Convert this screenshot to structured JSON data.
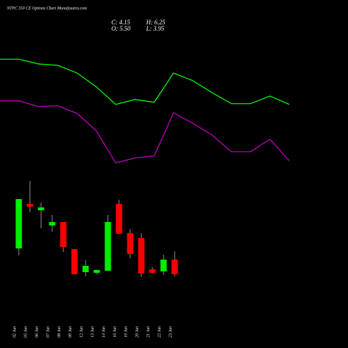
{
  "header": {
    "title": "NTPC 350 CE Options Chart Munafasutra.com",
    "summary": [
      "C: 4.15",
      "H: 6.25",
      "O: 5.50",
      "L: 3.95"
    ]
  },
  "chart_data": [
    {
      "type": "line",
      "ylim": [
        0,
        100
      ],
      "series": [
        {
          "color": "#00ff00",
          "values": [
            79.5,
            79.5,
            76.4,
            75.5,
            70.5,
            61.4,
            50,
            53.2,
            51.4,
            70.5,
            65.5,
            57.7,
            50.5,
            50.5,
            55.5,
            50
          ]
        },
        {
          "color": "#c000c0",
          "values": [
            52.3,
            52.3,
            48.6,
            49.1,
            44.1,
            32.7,
            11.8,
            15,
            16.4,
            44.5,
            37.7,
            30,
            19.1,
            19.1,
            27.3,
            13.2
          ]
        }
      ]
    },
    {
      "type": "candlestick",
      "ylim": [
        3.5,
        13
      ],
      "up_color": "#00ee00",
      "down_color": "#ff0000",
      "categories": [
        "02 Jun",
        "05 Jun",
        "06 Jun",
        "07 Jun",
        "08 Jun",
        "09 Jun",
        "12 Jun",
        "13 Jun",
        "14 Jun",
        "16 Jun",
        "19 Jun",
        "20 Jun",
        "21 Jun",
        "22 Jun",
        "23 Jun"
      ],
      "open": [
        6.53,
        10.64,
        10.06,
        8.65,
        8.97,
        6.47,
        4.34,
        4.28,
        4.47,
        10.64,
        7.94,
        7.49,
        4.6,
        4.41,
        5.5
      ],
      "high": [
        11.09,
        12.76,
        10.77,
        9.61,
        8.97,
        6.47,
        5.44,
        4.54,
        9.61,
        11.03,
        8.33,
        7.94,
        4.79,
        5.95,
        6.25
      ],
      "low": [
        5.89,
        9.87,
        8.39,
        8.07,
        6.21,
        4.15,
        3.96,
        4.15,
        4.47,
        7.88,
        5.63,
        3.89,
        4.21,
        4.09,
        3.95
      ],
      "close": [
        11.09,
        10.38,
        10.32,
        8.97,
        6.66,
        4.15,
        4.92,
        4.54,
        8.97,
        7.88,
        6.02,
        4.21,
        4.28,
        5.5,
        4.15
      ]
    }
  ]
}
